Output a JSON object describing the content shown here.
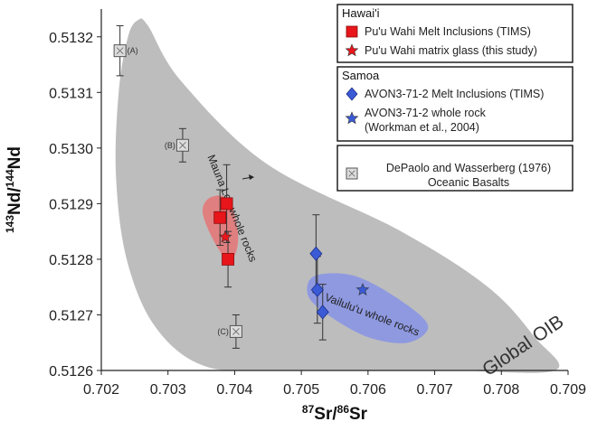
{
  "chart_data": {
    "type": "scatter",
    "xlabel_parts": [
      "87",
      "Sr/",
      "86",
      "Sr"
    ],
    "ylabel_parts": [
      "143",
      "Nd/",
      "144",
      "Nd"
    ],
    "xlim": [
      0.702,
      0.709
    ],
    "ylim": [
      0.5126,
      0.51325
    ],
    "x_ticks": [
      "0.702",
      "0.703",
      "0.704",
      "0.705",
      "0.706",
      "0.707",
      "0.708",
      "0.709"
    ],
    "y_ticks": [
      "0.5126",
      "0.5127",
      "0.5128",
      "0.5129",
      "0.5130",
      "0.5131",
      "0.5132"
    ],
    "colors": {
      "hawaii": "#e8161b",
      "samoa": "#3a5ad6",
      "depaolo": "#dddddd",
      "oib": "#bdbdbd",
      "mauna_loa": "#e07f80",
      "vailulu": "#8e99e0"
    },
    "regions": [
      {
        "name": "Global OIB",
        "label": "Global OIB",
        "color": "#bdbdbd",
        "outline": [
          [
            0.70255,
            0.51323
          ],
          [
            0.7027,
            0.51322
          ],
          [
            0.7032,
            0.51312
          ],
          [
            0.7045,
            0.51297
          ],
          [
            0.7065,
            0.51285
          ],
          [
            0.7078,
            0.51275
          ],
          [
            0.7085,
            0.51266
          ],
          [
            0.7088,
            0.5126
          ],
          [
            0.7072,
            0.5126
          ],
          [
            0.7045,
            0.5126
          ],
          [
            0.7035,
            0.51261
          ],
          [
            0.7028,
            0.51268
          ],
          [
            0.70238,
            0.5128
          ],
          [
            0.70222,
            0.51295
          ],
          [
            0.70226,
            0.5131
          ],
          [
            0.7024,
            0.5132
          ]
        ]
      },
      {
        "name": "Mauna Loa whole rocks",
        "label": "Mauna Loa whole rocks",
        "color": "#e07f80",
        "outline": [
          [
            0.70362,
            0.51291
          ],
          [
            0.70385,
            0.512912
          ],
          [
            0.704,
            0.51288
          ],
          [
            0.70405,
            0.51283
          ],
          [
            0.70393,
            0.512795
          ],
          [
            0.70375,
            0.51282
          ],
          [
            0.70358,
            0.51286
          ],
          [
            0.70352,
            0.51289
          ]
        ]
      },
      {
        "name": "Vailulu'u whole rocks",
        "label": "Vailulu'u whole rocks",
        "color": "#8e99e0",
        "outline": [
          [
            0.7052,
            0.51277
          ],
          [
            0.7058,
            0.51277
          ],
          [
            0.7065,
            0.512725
          ],
          [
            0.7069,
            0.51268
          ],
          [
            0.7066,
            0.51265
          ],
          [
            0.706,
            0.51266
          ],
          [
            0.7054,
            0.5127
          ],
          [
            0.7051,
            0.512735
          ]
        ]
      }
    ],
    "series": [
      {
        "name": "Pu'u Wahi Melt Inclusions (TIMS)",
        "marker": "square",
        "color": "#e8161b",
        "points": [
          {
            "x": 0.70378,
            "y": 0.512875,
            "err": 5e-05
          },
          {
            "x": 0.70388,
            "y": 0.5129,
            "err": 7e-05
          },
          {
            "x": 0.7039,
            "y": 0.5128,
            "err": 5e-05
          }
        ]
      },
      {
        "name": "Pu'u Wahi matrix glass (this study)",
        "marker": "star",
        "color": "#e8161b",
        "points": [
          {
            "x": 0.70386,
            "y": 0.51284
          }
        ]
      },
      {
        "name": "AVON3-71-2 Melt Inclusions (TIMS)",
        "marker": "diamond",
        "color": "#3a5ad6",
        "points": [
          {
            "x": 0.70522,
            "y": 0.51281,
            "err": 7e-05
          },
          {
            "x": 0.70524,
            "y": 0.512745,
            "err": 6e-05
          },
          {
            "x": 0.70532,
            "y": 0.512705,
            "err": 5e-05
          }
        ]
      },
      {
        "name": "AVON3-71-2 whole rock (Workman et al., 2004)",
        "marker": "star",
        "color": "#3a5ad6",
        "points": [
          {
            "x": 0.70592,
            "y": 0.512745
          }
        ]
      },
      {
        "name": "DePaolo and Wasserberg (1976) Oceanic Basalts",
        "marker": "square-x",
        "color": "#dddddd",
        "points": [
          {
            "x": 0.70228,
            "y": 0.513175,
            "err": 4.5e-05,
            "label": "(A)"
          },
          {
            "x": 0.70322,
            "y": 0.513005,
            "err": 3e-05,
            "label": "(B)"
          },
          {
            "x": 0.70402,
            "y": 0.51267,
            "err": 3e-05,
            "label": "(C)"
          }
        ]
      }
    ],
    "legend": {
      "groups": [
        {
          "title": "Hawai'i",
          "entries": [
            {
              "marker": "square",
              "color": "#e8161b",
              "lines": [
                "Pu'u Wahi Melt Inclusions (TIMS)"
              ]
            },
            {
              "marker": "star",
              "color": "#e8161b",
              "lines": [
                "Pu'u Wahi matrix glass (this study)"
              ]
            }
          ]
        },
        {
          "title": "Samoa",
          "entries": [
            {
              "marker": "diamond",
              "color": "#3a5ad6",
              "lines": [
                "AVON3-71-2 Melt Inclusions (TIMS)"
              ]
            },
            {
              "marker": "star",
              "color": "#3a5ad6",
              "lines": [
                "AVON3-71-2  whole rock",
                "(Workman et al., 2004)"
              ]
            }
          ]
        },
        {
          "title": "",
          "entries": [
            {
              "marker": "square-x",
              "color": "#dddddd",
              "lines": [
                "DePaolo and Wasserberg (1976)",
                "Oceanic Basalts"
              ]
            }
          ]
        }
      ]
    }
  }
}
